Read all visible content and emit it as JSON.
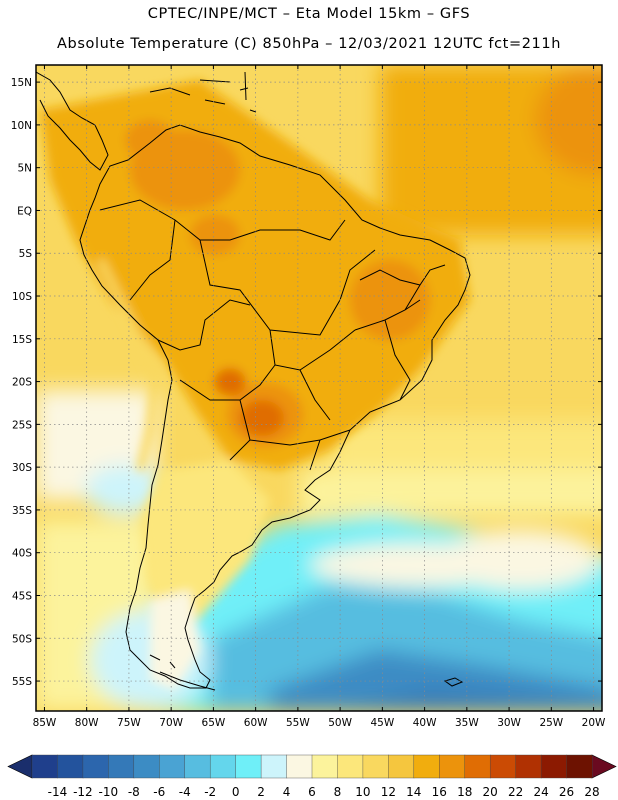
{
  "header": {
    "line1": "CPTEC/INPE/MCT –  Eta Model 15km – GFS",
    "line2": "Absolute Temperature (C) 850hPa – 12/03/2021 12UTC fct=211h"
  },
  "map": {
    "lon_range": [
      -86,
      -19
    ],
    "lat_range": [
      -58.5,
      17
    ],
    "lat_ticks": [
      {
        "value": 15,
        "label": "15N"
      },
      {
        "value": 10,
        "label": "10N"
      },
      {
        "value": 5,
        "label": "5N"
      },
      {
        "value": 0,
        "label": "EQ"
      },
      {
        "value": -5,
        "label": "5S"
      },
      {
        "value": -10,
        "label": "10S"
      },
      {
        "value": -15,
        "label": "15S"
      },
      {
        "value": -20,
        "label": "20S"
      },
      {
        "value": -25,
        "label": "25S"
      },
      {
        "value": -30,
        "label": "30S"
      },
      {
        "value": -35,
        "label": "35S"
      },
      {
        "value": -40,
        "label": "40S"
      },
      {
        "value": -45,
        "label": "45S"
      },
      {
        "value": -50,
        "label": "50S"
      },
      {
        "value": -55,
        "label": "55S"
      }
    ],
    "lon_ticks": [
      {
        "value": -85,
        "label": "85W"
      },
      {
        "value": -80,
        "label": "80W"
      },
      {
        "value": -75,
        "label": "75W"
      },
      {
        "value": -70,
        "label": "70W"
      },
      {
        "value": -65,
        "label": "65W"
      },
      {
        "value": -60,
        "label": "60W"
      },
      {
        "value": -55,
        "label": "55W"
      },
      {
        "value": -50,
        "label": "50W"
      },
      {
        "value": -45,
        "label": "45W"
      },
      {
        "value": -40,
        "label": "40W"
      },
      {
        "value": -35,
        "label": "35W"
      },
      {
        "value": -30,
        "label": "30W"
      },
      {
        "value": -25,
        "label": "25W"
      },
      {
        "value": -20,
        "label": "20W"
      }
    ],
    "gridlines": "dotted every 5 degrees",
    "field": [
      {
        "name": "tropical-ocean-north",
        "value": 16
      },
      {
        "name": "continent-north",
        "value": 18
      },
      {
        "name": "warm-core-paraguay",
        "value": 22
      },
      {
        "name": "warm-core-venezuela",
        "value": 20
      },
      {
        "name": "south-atlantic",
        "value": 12
      },
      {
        "name": "patagonia",
        "value": 10
      },
      {
        "name": "cold-south-atlantic",
        "value": 2
      },
      {
        "name": "far-south",
        "value": -8
      }
    ]
  },
  "colorbar": {
    "ticks": [
      "-14",
      "-12",
      "-10",
      "-8",
      "-6",
      "-4",
      "-2",
      "0",
      "2",
      "4",
      "6",
      "8",
      "10",
      "12",
      "14",
      "16",
      "18",
      "20",
      "22",
      "24",
      "26",
      "28"
    ],
    "colors": [
      "#1f3f8c",
      "#23539d",
      "#2c66ad",
      "#3479b8",
      "#3c8cc4",
      "#4aa3d3",
      "#57bde0",
      "#64d6ec",
      "#6feff8",
      "#cdf4fb",
      "#fbf7e2",
      "#fcf39c",
      "#fce77b",
      "#f9d85f",
      "#f5c63e",
      "#f1ad0e",
      "#ec930c",
      "#e06d04",
      "#cb4b04",
      "#b03102",
      "#8c1a01",
      "#6d1201"
    ],
    "under_color": "#1a2e6c",
    "over_color": "#6a0a20"
  }
}
